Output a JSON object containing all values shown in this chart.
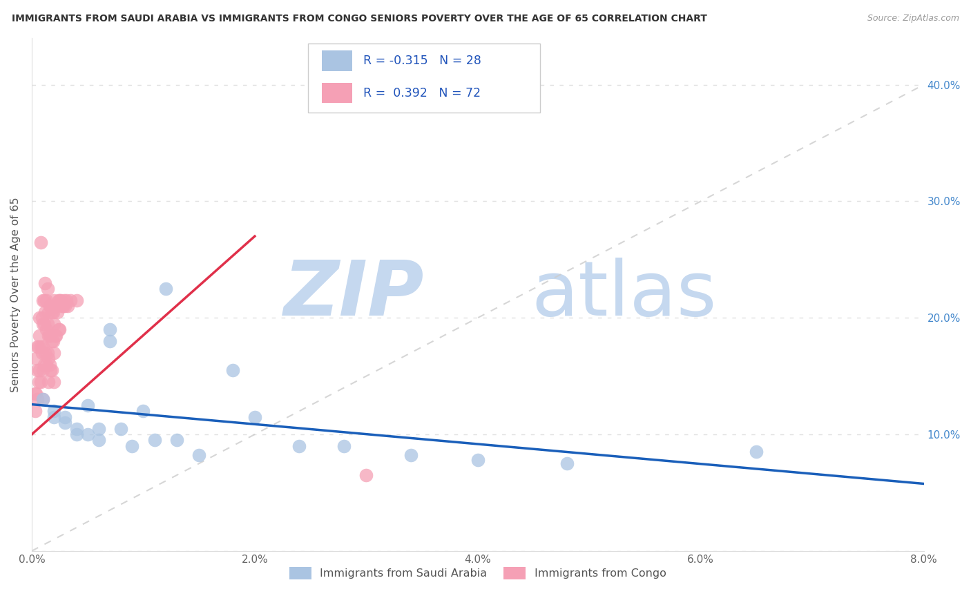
{
  "title": "IMMIGRANTS FROM SAUDI ARABIA VS IMMIGRANTS FROM CONGO SENIORS POVERTY OVER THE AGE OF 65 CORRELATION CHART",
  "source": "Source: ZipAtlas.com",
  "ylabel": "Seniors Poverty Over the Age of 65",
  "xlim": [
    0.0,
    0.08
  ],
  "ylim": [
    0.0,
    0.44
  ],
  "xticks": [
    0.0,
    0.02,
    0.04,
    0.06,
    0.08
  ],
  "xtick_labels": [
    "0.0%",
    "2.0%",
    "4.0%",
    "6.0%",
    "8.0%"
  ],
  "yticks_left": [
    0.0,
    0.1,
    0.2,
    0.3,
    0.4
  ],
  "yticks_right": [
    0.1,
    0.2,
    0.3,
    0.4
  ],
  "ytick_labels_right": [
    "10.0%",
    "20.0%",
    "30.0%",
    "40.0%"
  ],
  "legend1_R": "-0.315",
  "legend1_N": "28",
  "legend2_R": "0.392",
  "legend2_N": "72",
  "legend_label1": "Immigrants from Saudi Arabia",
  "legend_label2": "Immigrants from Congo",
  "saudi_color": "#aac4e2",
  "congo_color": "#f5a0b5",
  "saudi_line_color": "#1a5fba",
  "congo_line_color": "#e0304a",
  "ref_line_color": "#cccccc",
  "saudi_x": [
    0.001,
    0.002,
    0.002,
    0.003,
    0.003,
    0.004,
    0.004,
    0.005,
    0.005,
    0.006,
    0.006,
    0.007,
    0.007,
    0.008,
    0.009,
    0.01,
    0.011,
    0.012,
    0.013,
    0.015,
    0.018,
    0.02,
    0.024,
    0.028,
    0.034,
    0.04,
    0.048,
    0.065
  ],
  "saudi_y": [
    0.13,
    0.12,
    0.115,
    0.115,
    0.11,
    0.105,
    0.1,
    0.125,
    0.1,
    0.105,
    0.095,
    0.19,
    0.18,
    0.105,
    0.09,
    0.12,
    0.095,
    0.225,
    0.095,
    0.082,
    0.155,
    0.115,
    0.09,
    0.09,
    0.082,
    0.078,
    0.075,
    0.085
  ],
  "congo_x": [
    0.0003,
    0.0003,
    0.0004,
    0.0004,
    0.0005,
    0.0005,
    0.0005,
    0.0006,
    0.0006,
    0.0007,
    0.0007,
    0.0007,
    0.0008,
    0.0008,
    0.0008,
    0.0009,
    0.0009,
    0.001,
    0.001,
    0.001,
    0.001,
    0.001,
    0.0011,
    0.0011,
    0.0011,
    0.0012,
    0.0012,
    0.0012,
    0.0013,
    0.0013,
    0.0013,
    0.0014,
    0.0014,
    0.0014,
    0.0015,
    0.0015,
    0.0015,
    0.0015,
    0.0016,
    0.0016,
    0.0016,
    0.0017,
    0.0017,
    0.0017,
    0.0018,
    0.0018,
    0.0018,
    0.0019,
    0.0019,
    0.002,
    0.002,
    0.002,
    0.002,
    0.0021,
    0.0021,
    0.0022,
    0.0022,
    0.0023,
    0.0024,
    0.0024,
    0.0025,
    0.0025,
    0.0026,
    0.0027,
    0.0028,
    0.0029,
    0.003,
    0.0031,
    0.0032,
    0.0035,
    0.004,
    0.03
  ],
  "congo_y": [
    0.135,
    0.12,
    0.165,
    0.135,
    0.175,
    0.155,
    0.13,
    0.175,
    0.145,
    0.2,
    0.185,
    0.155,
    0.265,
    0.175,
    0.145,
    0.2,
    0.17,
    0.215,
    0.195,
    0.175,
    0.155,
    0.13,
    0.215,
    0.195,
    0.16,
    0.23,
    0.205,
    0.17,
    0.215,
    0.19,
    0.16,
    0.225,
    0.195,
    0.17,
    0.205,
    0.185,
    0.165,
    0.145,
    0.21,
    0.185,
    0.16,
    0.21,
    0.185,
    0.155,
    0.205,
    0.18,
    0.155,
    0.205,
    0.18,
    0.215,
    0.195,
    0.17,
    0.145,
    0.21,
    0.185,
    0.21,
    0.185,
    0.205,
    0.215,
    0.19,
    0.215,
    0.19,
    0.215,
    0.21,
    0.21,
    0.215,
    0.21,
    0.215,
    0.21,
    0.215,
    0.215,
    0.065
  ],
  "background_color": "#ffffff",
  "grid_color": "#e0e0e0",
  "watermark_zip_color": "#c5d8ef",
  "watermark_atlas_color": "#c5d8ef"
}
